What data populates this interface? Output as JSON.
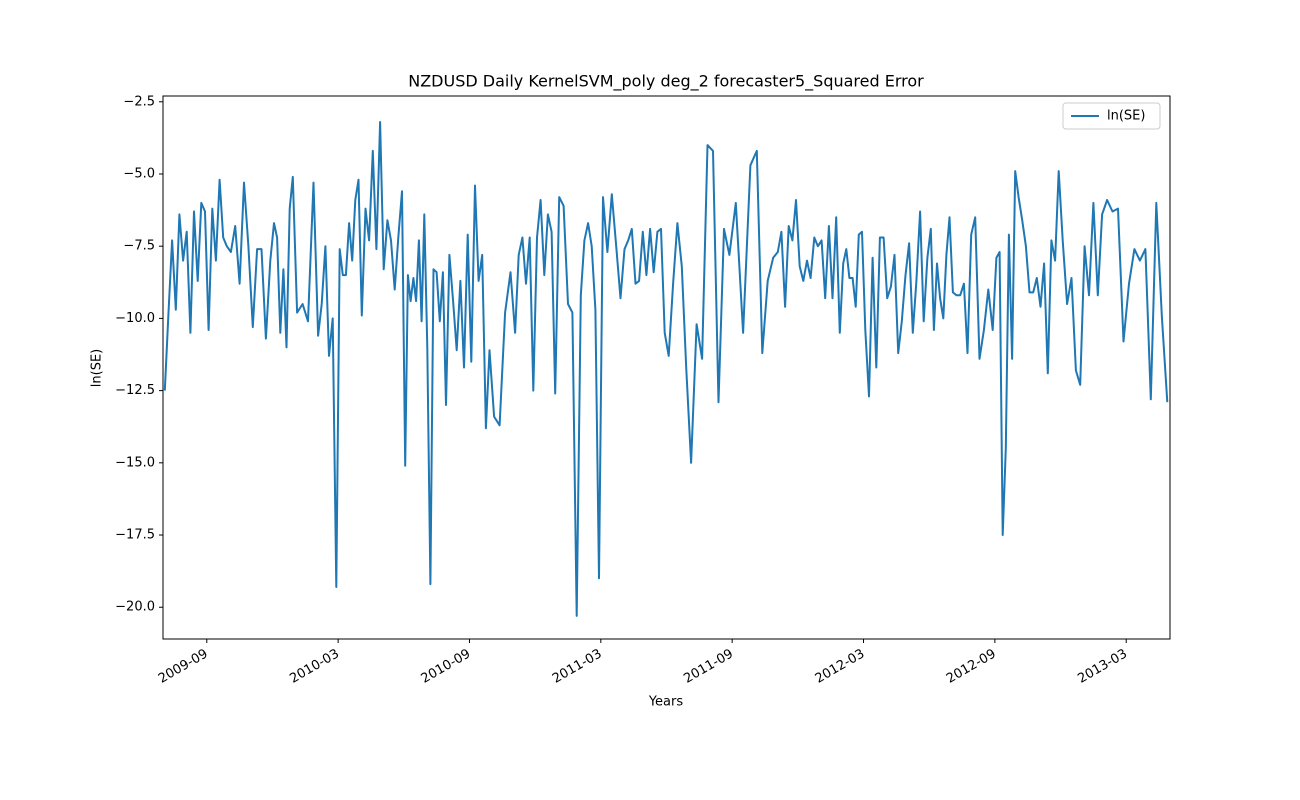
{
  "chart_data": {
    "type": "line",
    "title": "NZDUSD Daily KernelSVM_poly deg_2 forecaster5_Squared Error",
    "xlabel": "Years",
    "ylabel": "ln(SE)",
    "x": [
      "2009-07",
      "2009-07",
      "2009-07",
      "2009-07",
      "2009-07",
      "2009-07",
      "2009-08",
      "2009-08",
      "2009-08",
      "2009-08",
      "2009-08",
      "2009-08",
      "2009-09",
      "2009-09",
      "2009-09",
      "2009-09",
      "2009-09",
      "2009-09",
      "2009-10",
      "2009-10",
      "2009-10",
      "2009-10",
      "2009-10",
      "2009-11",
      "2009-11",
      "2009-11",
      "2009-11",
      "2009-11",
      "2009-12",
      "2009-12",
      "2009-12",
      "2009-12",
      "2009-12",
      "2009-12",
      "2009-12",
      "2010-01",
      "2010-01",
      "2010-01",
      "2010-01",
      "2010-02",
      "2010-02",
      "2010-02",
      "2010-02",
      "2010-02",
      "2010-02",
      "2010-03",
      "2010-03",
      "2010-03",
      "2010-03",
      "2010-03",
      "2010-03",
      "2010-03",
      "2010-04",
      "2010-04",
      "2010-04",
      "2010-04",
      "2010-04",
      "2010-04",
      "2010-05",
      "2010-05",
      "2010-05",
      "2010-05",
      "2010-05",
      "2010-05",
      "2010-06",
      "2010-06",
      "2010-06",
      "2010-06",
      "2010-06",
      "2010-06",
      "2010-06",
      "2010-06",
      "2010-07",
      "2010-07",
      "2010-07",
      "2010-07",
      "2010-07",
      "2010-07",
      "2010-07",
      "2010-08",
      "2010-08",
      "2010-08",
      "2010-08",
      "2010-08",
      "2010-08",
      "2010-09",
      "2010-09",
      "2010-09",
      "2010-09",
      "2010-09",
      "2010-09",
      "2010-10",
      "2010-10",
      "2010-10",
      "2010-10",
      "2010-11",
      "2010-11",
      "2010-11",
      "2010-11",
      "2010-11",
      "2010-11",
      "2010-12",
      "2010-12",
      "2010-12",
      "2010-12",
      "2010-12",
      "2010-12",
      "2011-01",
      "2011-01",
      "2011-01",
      "2011-01",
      "2011-01",
      "2011-02",
      "2011-02",
      "2011-02",
      "2011-02",
      "2011-02",
      "2011-02",
      "2011-03",
      "2011-03",
      "2011-03",
      "2011-03",
      "2011-03",
      "2011-04",
      "2011-04",
      "2011-04",
      "2011-04",
      "2011-04",
      "2011-04",
      "2011-05",
      "2011-05",
      "2011-05",
      "2011-05",
      "2011-05",
      "2011-05",
      "2011-06",
      "2011-06",
      "2011-06",
      "2011-06",
      "2011-06",
      "2011-07",
      "2011-07",
      "2011-07",
      "2011-07",
      "2011-08",
      "2011-08",
      "2011-08",
      "2011-08",
      "2011-09",
      "2011-09",
      "2011-09",
      "2011-10",
      "2011-10",
      "2011-10",
      "2011-10",
      "2011-11",
      "2011-11",
      "2011-11",
      "2011-11",
      "2011-11",
      "2011-11",
      "2011-12",
      "2011-12",
      "2011-12",
      "2011-12",
      "2011-12",
      "2011-12",
      "2012-01",
      "2012-01",
      "2012-01",
      "2012-01",
      "2012-01",
      "2012-01",
      "2012-02",
      "2012-02",
      "2012-02",
      "2012-02",
      "2012-02",
      "2012-02",
      "2012-02",
      "2012-03",
      "2012-03",
      "2012-03",
      "2012-03",
      "2012-03",
      "2012-03",
      "2012-04",
      "2012-04",
      "2012-04",
      "2012-04",
      "2012-04",
      "2012-04",
      "2012-05",
      "2012-05",
      "2012-05",
      "2012-05",
      "2012-05",
      "2012-05",
      "2012-06",
      "2012-06",
      "2012-06",
      "2012-06",
      "2012-06",
      "2012-06",
      "2012-06",
      "2012-07",
      "2012-07",
      "2012-07",
      "2012-07",
      "2012-07",
      "2012-07",
      "2012-08",
      "2012-08",
      "2012-08",
      "2012-08",
      "2012-08",
      "2012-09",
      "2012-09",
      "2012-09",
      "2012-09",
      "2012-09",
      "2012-09",
      "2012-09",
      "2012-10",
      "2012-10",
      "2012-10",
      "2012-10",
      "2012-10",
      "2012-10",
      "2012-11",
      "2012-11",
      "2012-11",
      "2012-11",
      "2012-11",
      "2012-11",
      "2012-12",
      "2012-12",
      "2012-12",
      "2012-12",
      "2012-12",
      "2013-01",
      "2013-01",
      "2013-01",
      "2013-01",
      "2013-01",
      "2013-02",
      "2013-02",
      "2013-02",
      "2013-02",
      "2013-03",
      "2013-03",
      "2013-03",
      "2013-03",
      "2013-04",
      "2013-04",
      "2013-04",
      "2013-04"
    ],
    "series": [
      {
        "name": "ln(SE)",
        "color": "#1f77b4",
        "values": [
          -12.5,
          -9.8,
          -7.3,
          -9.7,
          -6.4,
          -8.0,
          -7.0,
          -10.5,
          -6.3,
          -8.7,
          -6.0,
          -6.3,
          -10.4,
          -6.2,
          -8.0,
          -5.2,
          -7.2,
          -7.5,
          -7.7,
          -6.8,
          -8.8,
          -5.3,
          -7.5,
          -10.3,
          -7.6,
          -7.6,
          -10.7,
          -8.0,
          -6.7,
          -7.2,
          -10.5,
          -8.3,
          -11.0,
          -6.2,
          -5.1,
          -9.8,
          -9.5,
          -10.1,
          -5.3,
          -10.6,
          -9.5,
          -7.5,
          -11.3,
          -10.0,
          -19.3,
          -7.6,
          -8.5,
          -8.5,
          -6.7,
          -8.0,
          -5.9,
          -5.2,
          -9.9,
          -6.2,
          -7.3,
          -4.2,
          -7.6,
          -3.2,
          -8.3,
          -6.6,
          -7.3,
          -9.0,
          -7.2,
          -5.6,
          -15.1,
          -8.5,
          -9.4,
          -8.6,
          -9.4,
          -7.3,
          -10.1,
          -6.4,
          -11.0,
          -19.2,
          -8.3,
          -8.4,
          -10.1,
          -8.4,
          -13.0,
          -7.8,
          -9.4,
          -11.1,
          -8.7,
          -11.7,
          -7.1,
          -11.5,
          -5.4,
          -8.7,
          -7.8,
          -13.8,
          -11.1,
          -13.4,
          -13.7,
          -9.8,
          -8.4,
          -10.5,
          -7.8,
          -7.2,
          -8.8,
          -7.2,
          -12.5,
          -7.2,
          -5.9,
          -8.5,
          -6.4,
          -7.0,
          -12.6,
          -5.8,
          -6.1,
          -9.5,
          -9.8,
          -20.3,
          -9.2,
          -7.3,
          -6.7,
          -7.5,
          -9.7,
          -19.0,
          -5.8,
          -7.7,
          -5.7,
          -7.5,
          -9.3,
          -7.6,
          -7.3,
          -6.9,
          -8.8,
          -8.7,
          -7.0,
          -8.5,
          -6.9,
          -8.4,
          -7.0,
          -6.9,
          -10.5,
          -11.3,
          -8.8,
          -6.7,
          -8.2,
          -11.7,
          -15.0,
          -10.2,
          -11.4,
          -4.0,
          -4.2,
          -12.9,
          -6.9,
          -7.8,
          -6.0,
          -10.5,
          -4.7,
          -4.2,
          -11.2,
          -8.7,
          -7.9,
          -7.7,
          -7.0,
          -9.6,
          -6.8,
          -7.3,
          -5.9,
          -8.2,
          -8.7,
          -8.0,
          -8.6,
          -7.2,
          -7.5,
          -7.3,
          -9.3,
          -6.8,
          -9.3,
          -6.5,
          -10.5,
          -8.1,
          -7.6,
          -8.6,
          -8.6,
          -9.6,
          -7.1,
          -7.0,
          -10.4,
          -12.7,
          -7.9,
          -11.7,
          -7.2,
          -7.2,
          -9.3,
          -8.9,
          -7.8,
          -11.2,
          -10.1,
          -8.5,
          -7.4,
          -10.5,
          -8.7,
          -6.3,
          -10.1,
          -7.9,
          -6.9,
          -10.4,
          -8.1,
          -9.3,
          -10.0,
          -7.8,
          -6.5,
          -9.1,
          -9.2,
          -9.2,
          -8.8,
          -11.2,
          -7.1,
          -6.5,
          -11.4,
          -10.4,
          -9.0,
          -10.4,
          -7.9,
          -7.7,
          -17.5,
          -14.5,
          -7.1,
          -11.4,
          -4.9,
          -5.8,
          -6.6,
          -7.5,
          -9.1,
          -9.1,
          -8.6,
          -9.6,
          -8.1,
          -11.9,
          -7.3,
          -8.0,
          -4.9,
          -7.3,
          -9.5,
          -8.6,
          -11.8,
          -12.3,
          -7.5,
          -9.2,
          -6.0,
          -9.2,
          -6.4,
          -5.9,
          -6.3,
          -6.2,
          -10.8,
          -8.8,
          -7.6,
          -8.0,
          -7.6,
          -12.8,
          -6.0,
          -9.9,
          -12.9
        ]
      }
    ],
    "xlim": [
      "2009-07",
      "2013-05"
    ],
    "xticks": [
      "2009-09",
      "2010-03",
      "2010-09",
      "2011-03",
      "2011-09",
      "2012-03",
      "2012-09",
      "2013-03"
    ],
    "ylim": [
      -21.1,
      -2.3
    ],
    "yticks": [
      {
        "value": -2.5,
        "label": "−2.5"
      },
      {
        "value": -5.0,
        "label": "−5.0"
      },
      {
        "value": -7.5,
        "label": "−7.5"
      },
      {
        "value": -10.0,
        "label": "−10.0"
      },
      {
        "value": -12.5,
        "label": "−12.5"
      },
      {
        "value": -15.0,
        "label": "−15.0"
      },
      {
        "value": -17.5,
        "label": "−17.5"
      },
      {
        "value": -20.0,
        "label": "−20.0"
      }
    ],
    "legend": "upper right",
    "grid": false
  }
}
